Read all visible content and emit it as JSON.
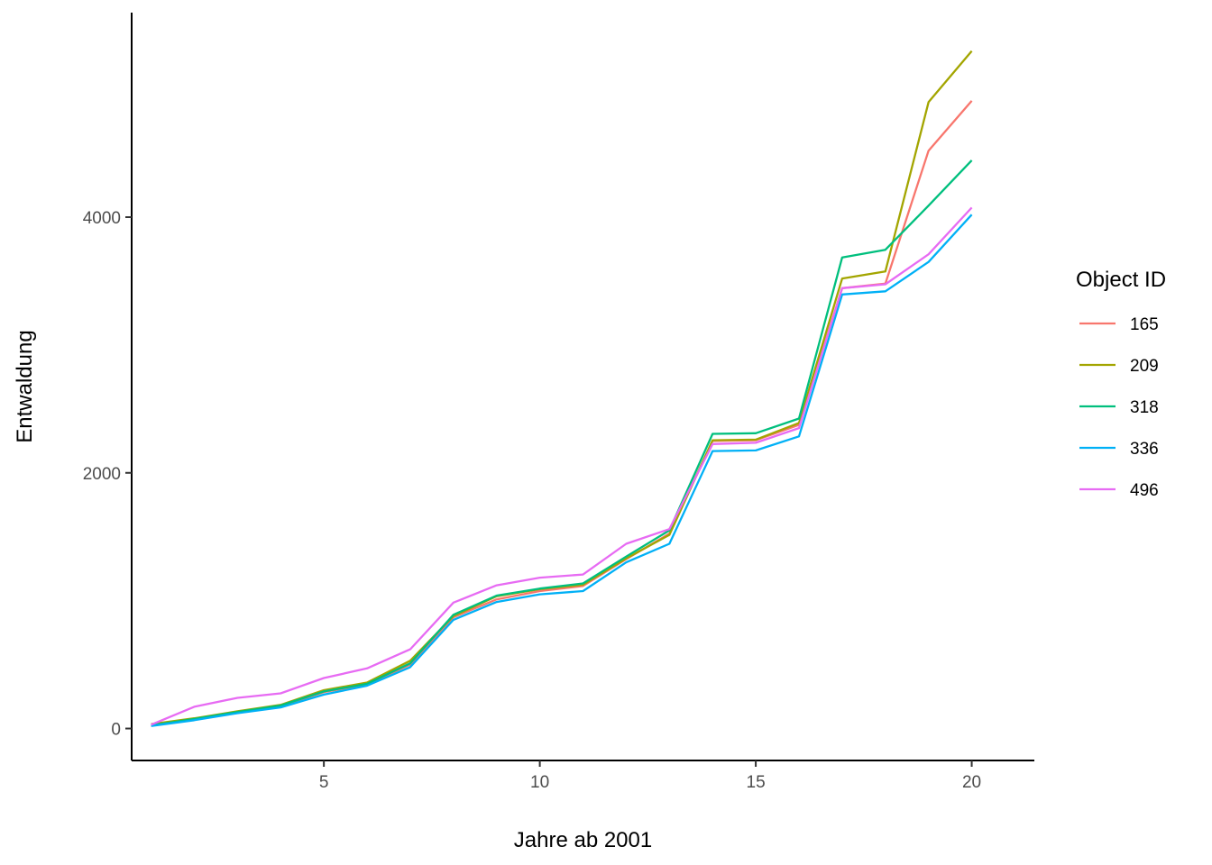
{
  "chart_data": {
    "type": "line",
    "xlabel": "Jahre ab 2001",
    "ylabel": "Entwaldung",
    "xlim": [
      0.55,
      21.45
    ],
    "ylim": [
      -250,
      5600
    ],
    "x_ticks": [
      5,
      10,
      15,
      20
    ],
    "y_ticks": [
      0,
      2000,
      4000
    ],
    "grid": false,
    "legend": {
      "title": "Object ID",
      "position": "right"
    },
    "x": [
      1,
      2,
      3,
      4,
      5,
      6,
      7,
      8,
      9,
      10,
      11,
      12,
      13,
      14,
      15,
      16,
      17,
      18,
      19,
      20
    ],
    "series": [
      {
        "name": "165",
        "color": "#F8766D",
        "values": [
          25,
          75,
          125,
          175,
          285,
          345,
          500,
          870,
          1010,
          1075,
          1115,
          1325,
          1525,
          2250,
          2255,
          2375,
          3445,
          3480,
          4520,
          4910
        ]
      },
      {
        "name": "209",
        "color": "#A3A500",
        "values": [
          35,
          80,
          135,
          185,
          300,
          360,
          530,
          880,
          1035,
          1090,
          1125,
          1330,
          1515,
          2255,
          2260,
          2390,
          3520,
          3575,
          4900,
          5300
        ]
      },
      {
        "name": "318",
        "color": "#00BF7D",
        "values": [
          25,
          75,
          130,
          180,
          290,
          350,
          510,
          890,
          1040,
          1095,
          1135,
          1345,
          1550,
          2305,
          2310,
          2425,
          3685,
          3745,
          4090,
          4445
        ]
      },
      {
        "name": "336",
        "color": "#00B0F6",
        "values": [
          20,
          65,
          120,
          165,
          265,
          335,
          480,
          850,
          990,
          1050,
          1075,
          1300,
          1445,
          2170,
          2175,
          2285,
          3395,
          3420,
          3650,
          4020
        ]
      },
      {
        "name": "496",
        "color": "#E76BF3",
        "values": [
          30,
          170,
          240,
          275,
          395,
          470,
          620,
          985,
          1120,
          1180,
          1205,
          1445,
          1560,
          2225,
          2235,
          2350,
          3445,
          3475,
          3710,
          4075
        ]
      }
    ]
  }
}
